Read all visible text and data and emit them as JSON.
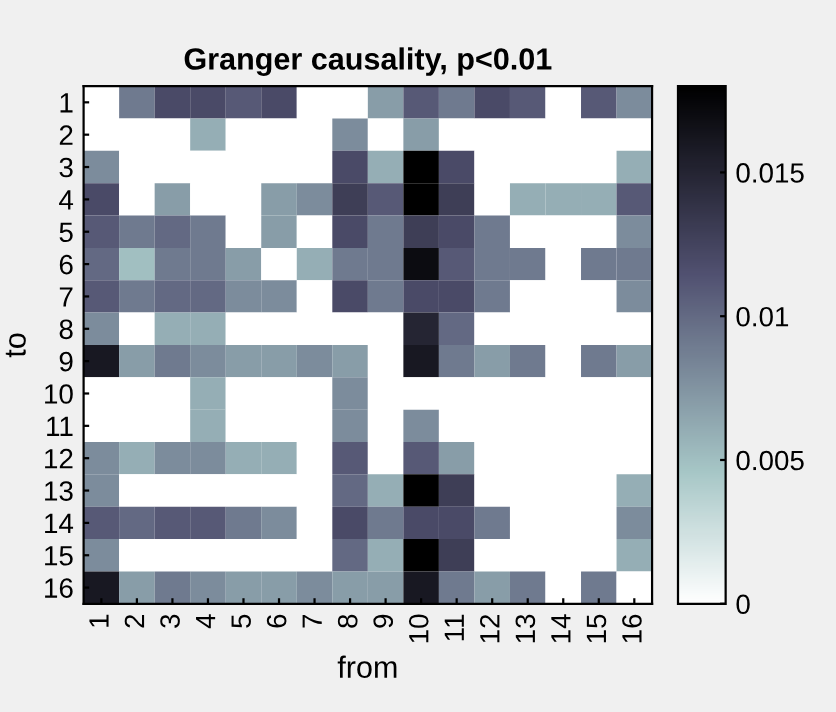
{
  "chart_data": {
    "type": "heatmap",
    "title": "Granger causality, p<0.01",
    "xlabel": "from",
    "ylabel": "to",
    "categories": [
      "1",
      "2",
      "3",
      "4",
      "5",
      "6",
      "7",
      "8",
      "9",
      "10",
      "11",
      "12",
      "13",
      "14",
      "15",
      "16"
    ],
    "y_categories": [
      "1",
      "2",
      "3",
      "4",
      "5",
      "6",
      "7",
      "8",
      "9",
      "10",
      "11",
      "12",
      "13",
      "14",
      "15",
      "16"
    ],
    "cells": [
      [
        0,
        0.009,
        0.012,
        0.012,
        0.011,
        0.012,
        0,
        0,
        0.007,
        0.011,
        0.009,
        0.012,
        0.011,
        0,
        0.011,
        0.008
      ],
      [
        0,
        0,
        0,
        0.006,
        0,
        0,
        0,
        0.008,
        0,
        0.007,
        0,
        0,
        0,
        0,
        0,
        0
      ],
      [
        0.008,
        0,
        0,
        0,
        0,
        0,
        0,
        0.012,
        0.006,
        0.018,
        0.012,
        0,
        0,
        0,
        0,
        0.006
      ],
      [
        0.012,
        0,
        0.007,
        0,
        0,
        0.007,
        0.008,
        0.013,
        0.011,
        0.018,
        0.013,
        0,
        0.006,
        0.006,
        0.006,
        0.011
      ],
      [
        0.011,
        0.009,
        0.01,
        0.009,
        0,
        0.007,
        0,
        0.012,
        0.009,
        0.013,
        0.012,
        0.009,
        0,
        0,
        0,
        0.008
      ],
      [
        0.01,
        0.005,
        0.009,
        0.009,
        0.007,
        0,
        0.006,
        0.009,
        0.009,
        0.017,
        0.011,
        0.009,
        0.009,
        0,
        0.009,
        0.009
      ],
      [
        0.011,
        0.009,
        0.01,
        0.01,
        0.008,
        0.008,
        0,
        0.012,
        0.009,
        0.012,
        0.012,
        0.009,
        0,
        0,
        0,
        0.008
      ],
      [
        0.008,
        0,
        0.006,
        0.006,
        0,
        0,
        0,
        0,
        0,
        0.015,
        0.01,
        0,
        0,
        0,
        0,
        0
      ],
      [
        0.016,
        0.007,
        0.009,
        0.008,
        0.007,
        0.007,
        0.008,
        0.007,
        0,
        0.016,
        0.009,
        0.007,
        0.009,
        0,
        0.009,
        0.007
      ],
      [
        0,
        0,
        0,
        0.006,
        0,
        0,
        0,
        0.008,
        0,
        0,
        0,
        0,
        0,
        0,
        0,
        0
      ],
      [
        0,
        0,
        0,
        0.006,
        0,
        0,
        0,
        0.008,
        0,
        0.008,
        0,
        0,
        0,
        0,
        0,
        0
      ],
      [
        0.008,
        0.006,
        0.008,
        0.008,
        0.006,
        0.006,
        0,
        0.011,
        0,
        0.011,
        0.007,
        0,
        0,
        0,
        0,
        0
      ],
      [
        0.008,
        0,
        0,
        0,
        0,
        0,
        0,
        0.01,
        0.006,
        0.018,
        0.013,
        0,
        0,
        0,
        0,
        0.006
      ],
      [
        0.011,
        0.01,
        0.011,
        0.011,
        0.009,
        0.008,
        0,
        0.012,
        0.009,
        0.012,
        0.012,
        0.009,
        0,
        0,
        0,
        0.008
      ],
      [
        0.008,
        0,
        0,
        0,
        0,
        0,
        0,
        0.01,
        0.006,
        0.018,
        0.013,
        0,
        0,
        0,
        0,
        0.006
      ],
      [
        0.016,
        0.007,
        0.009,
        0.008,
        0.007,
        0.007,
        0.008,
        0.007,
        0.007,
        0.016,
        0.009,
        0.007,
        0.009,
        0,
        0.009,
        0
      ]
    ],
    "clim": [
      0,
      0.018
    ],
    "cticks": [
      0,
      0.005,
      0.01,
      0.015
    ]
  }
}
